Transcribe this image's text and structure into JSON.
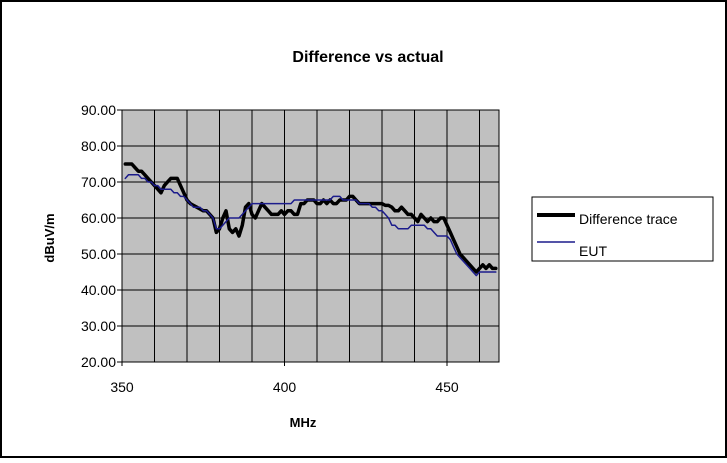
{
  "chart_data": {
    "type": "line",
    "title": "Difference vs actual",
    "xlabel": "MHz",
    "ylabel": "dBuV/m",
    "xlim": [
      350,
      466
    ],
    "ylim": [
      20,
      90
    ],
    "x_ticks": [
      350,
      400,
      450
    ],
    "y_ticks": [
      "20.00",
      "30.00",
      "40.00",
      "50.00",
      "60.00",
      "70.00",
      "80.00",
      "90.00"
    ],
    "grid": true,
    "plot_background": "#c0c0c0",
    "legend_position": "right",
    "series": [
      {
        "name": "Difference trace",
        "color": "#000000",
        "x": [
          351,
          352,
          353,
          354,
          355,
          356,
          357,
          358,
          359,
          360,
          361,
          362,
          363,
          364,
          365,
          366,
          367,
          368,
          369,
          370,
          371,
          372,
          373,
          374,
          375,
          376,
          377,
          378,
          379,
          380,
          381,
          382,
          383,
          384,
          385,
          386,
          387,
          388,
          389,
          390,
          391,
          392,
          393,
          394,
          395,
          396,
          397,
          398,
          399,
          400,
          401,
          402,
          403,
          404,
          405,
          406,
          407,
          408,
          409,
          410,
          411,
          412,
          413,
          414,
          415,
          416,
          417,
          418,
          419,
          420,
          421,
          422,
          423,
          424,
          425,
          426,
          427,
          428,
          429,
          430,
          431,
          432,
          433,
          434,
          435,
          436,
          437,
          438,
          439,
          440,
          441,
          442,
          443,
          444,
          445,
          446,
          447,
          448,
          449,
          450,
          451,
          452,
          453,
          454,
          455,
          456,
          457,
          458,
          459,
          460,
          461,
          462,
          463,
          464,
          465
        ],
        "y": [
          75,
          75,
          75,
          74,
          73,
          73,
          72,
          71,
          70,
          69,
          68,
          67,
          69,
          70,
          71,
          71,
          71,
          69,
          67,
          65,
          64,
          63.5,
          63,
          62.5,
          62,
          62,
          61,
          60,
          56,
          57,
          60,
          62,
          57,
          56,
          57,
          55,
          58,
          63,
          64,
          61,
          60,
          62,
          64,
          63,
          62,
          61,
          61,
          61,
          62,
          61,
          62,
          62,
          61,
          61,
          64,
          64,
          65,
          65,
          65,
          64,
          64,
          65,
          64,
          65,
          64,
          64,
          65,
          65,
          65,
          66,
          66,
          65,
          64,
          64,
          64,
          64,
          64,
          64,
          64,
          64,
          63.5,
          63.5,
          63,
          62,
          62,
          63,
          62,
          61,
          61,
          60,
          59,
          61,
          60,
          59,
          60,
          59,
          59,
          60,
          60,
          58,
          56,
          54,
          52,
          50,
          49,
          48,
          47,
          46,
          45,
          46,
          47,
          46,
          47,
          46,
          46
        ]
      },
      {
        "name": "EUT",
        "color": "#1c1c8c",
        "x": [
          351,
          352,
          353,
          354,
          355,
          356,
          357,
          358,
          359,
          360,
          361,
          362,
          363,
          364,
          365,
          366,
          367,
          368,
          369,
          370,
          371,
          372,
          373,
          374,
          375,
          376,
          377,
          378,
          379,
          380,
          381,
          382,
          383,
          384,
          385,
          386,
          387,
          388,
          389,
          390,
          391,
          392,
          393,
          394,
          395,
          396,
          397,
          398,
          399,
          400,
          401,
          402,
          403,
          404,
          405,
          406,
          407,
          408,
          409,
          410,
          411,
          412,
          413,
          414,
          415,
          416,
          417,
          418,
          419,
          420,
          421,
          422,
          423,
          424,
          425,
          426,
          427,
          428,
          429,
          430,
          431,
          432,
          433,
          434,
          435,
          436,
          437,
          438,
          439,
          440,
          441,
          442,
          443,
          444,
          445,
          446,
          447,
          448,
          449,
          450,
          451,
          452,
          453,
          454,
          455,
          456,
          457,
          458,
          459,
          460,
          461,
          462,
          463,
          464,
          465
        ],
        "y": [
          71,
          72,
          72,
          72,
          72,
          71,
          71,
          70,
          70,
          69,
          69,
          68,
          68,
          68,
          68,
          67,
          67,
          66,
          66,
          65,
          64,
          63,
          63,
          63,
          62,
          62,
          61,
          60,
          57,
          57,
          58,
          59,
          60,
          60,
          60,
          60,
          61,
          62,
          63,
          64,
          64,
          64,
          64,
          64,
          64,
          64,
          64,
          64,
          64,
          64,
          64,
          64,
          65,
          65,
          65,
          65,
          65,
          65,
          65,
          65,
          65,
          65,
          65,
          65,
          66,
          66,
          66,
          65,
          65,
          65,
          65,
          65,
          64,
          64,
          64,
          64,
          63,
          63,
          62,
          62,
          61,
          60,
          58,
          58,
          57,
          57,
          57,
          57,
          58,
          58,
          58,
          58,
          58,
          57,
          57,
          56,
          55,
          55,
          55,
          55,
          54,
          52,
          50,
          49,
          48,
          47,
          46,
          45,
          44,
          45,
          45,
          45,
          45,
          45,
          45
        ]
      }
    ]
  }
}
